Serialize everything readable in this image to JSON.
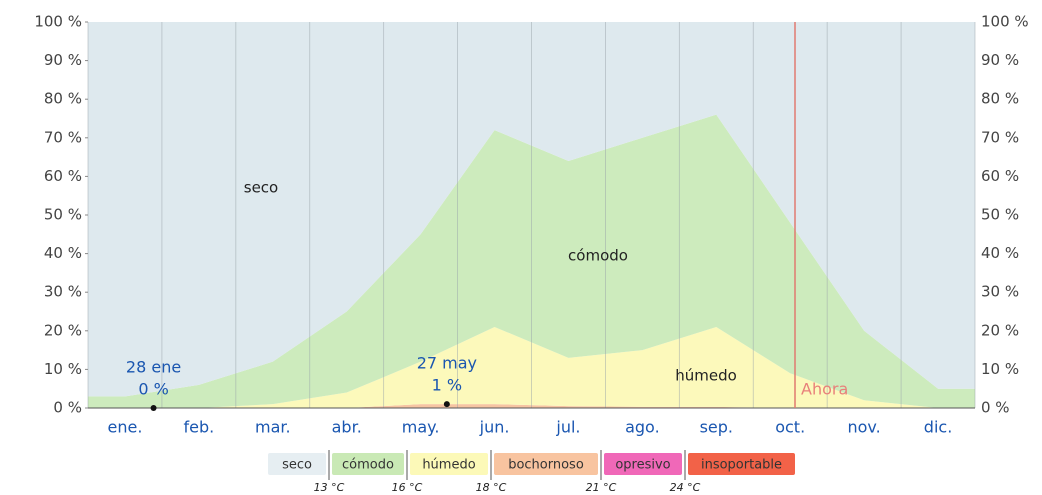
{
  "chart_data": {
    "type": "stacked_area",
    "categories": [
      "ene.",
      "feb.",
      "mar.",
      "abr.",
      "may.",
      "jun.",
      "jul.",
      "ago.",
      "sep.",
      "oct.",
      "nov.",
      "dic."
    ],
    "series": [
      {
        "name": "bochornoso",
        "color": "#f6c4a2",
        "values": [
          0,
          0,
          0,
          0,
          1,
          1,
          0.5,
          0.3,
          0.3,
          0,
          0,
          0
        ]
      },
      {
        "name": "húmedo",
        "color": "#fcf9bb",
        "values": [
          0,
          0,
          1,
          4,
          11,
          20,
          12.5,
          14.7,
          20.7,
          9,
          2,
          0
        ]
      },
      {
        "name": "cómodo",
        "color": "#cdebbd",
        "values": [
          3,
          6,
          11,
          21,
          33,
          51,
          51,
          55,
          55,
          39,
          18,
          5
        ]
      },
      {
        "name": "seco",
        "color": "#dee9ee",
        "values": [
          97,
          94,
          88,
          75,
          55,
          28,
          36,
          30,
          24,
          52,
          80,
          95
        ]
      }
    ],
    "ylim": [
      0,
      100
    ],
    "yticks": [
      {
        "value": 0,
        "label": "0 %"
      },
      {
        "value": 10,
        "label": "10 %"
      },
      {
        "value": 20,
        "label": "20 %"
      },
      {
        "value": 30,
        "label": "30 %"
      },
      {
        "value": 40,
        "label": "40 %"
      },
      {
        "value": 50,
        "label": "50 %"
      },
      {
        "value": 60,
        "label": "60 %"
      },
      {
        "value": 70,
        "label": "70 %"
      },
      {
        "value": 80,
        "label": "80 %"
      },
      {
        "value": 90,
        "label": "90 %"
      },
      {
        "value": 100,
        "label": "100 %"
      }
    ],
    "annotations": [
      {
        "date": "28 ene",
        "value": 0,
        "value_label": "0 %"
      },
      {
        "date": "27 may",
        "value": 1,
        "value_label": "1 %"
      }
    ],
    "now_label": "Ahora",
    "legend": [
      {
        "name": "seco",
        "color": "#e6eef2"
      },
      {
        "name": "cómodo",
        "color": "#c9e9b5"
      },
      {
        "name": "húmedo",
        "color": "#fcf9b8"
      },
      {
        "name": "bochornoso",
        "color": "#f8c4a0"
      },
      {
        "name": "opresivo",
        "color": "#f068b8"
      },
      {
        "name": "insoportable",
        "color": "#f26248"
      }
    ],
    "thresholds": [
      "13 °C",
      "16 °C",
      "18 °C",
      "21 °C",
      "24 °C"
    ]
  }
}
